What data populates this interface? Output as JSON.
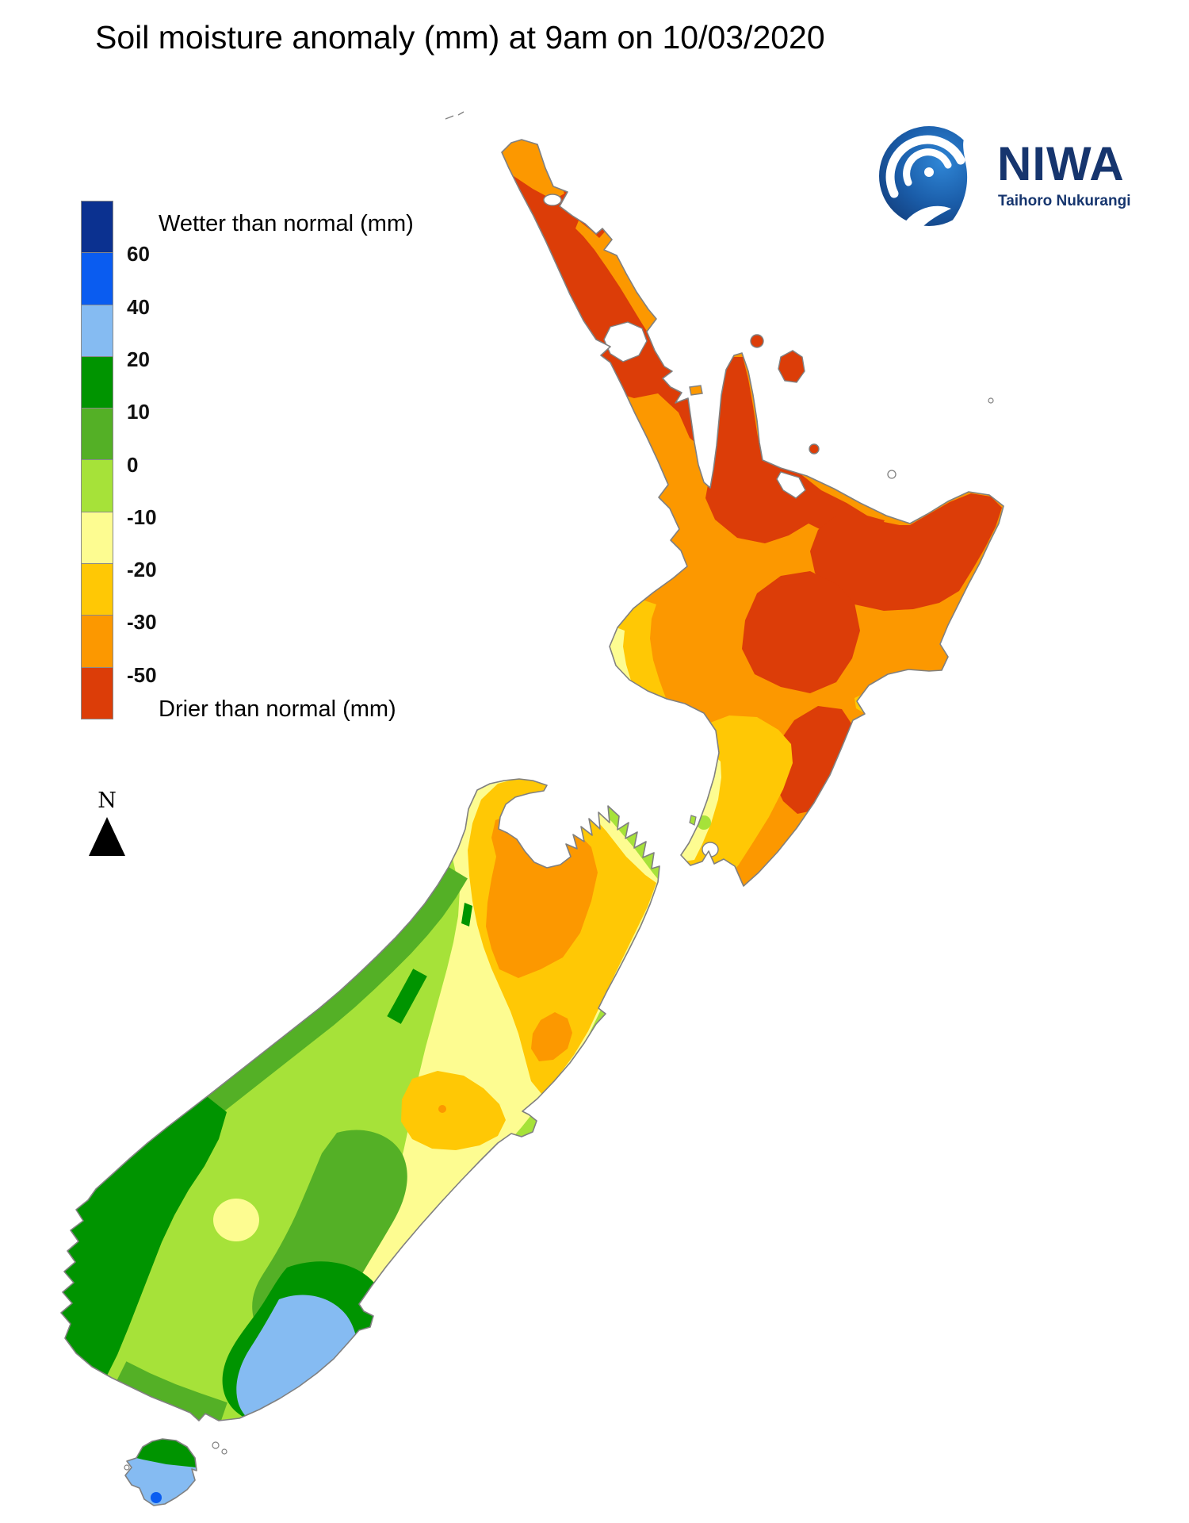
{
  "title": "Soil moisture anomaly (mm) at 9am on 10/03/2020",
  "logo": {
    "name": "NIWA",
    "tagline": "Taihoro Nukurangi",
    "color": "#16356E"
  },
  "compass": {
    "label": "N"
  },
  "palette": {
    "navy": "#0B3190",
    "blue": "#0A5CF0",
    "light_blue": "#85BBF2",
    "dark_green": "#009400",
    "mid_green": "#54B026",
    "light_green": "#A6E239",
    "pale_yellow": "#FDFC91",
    "gold": "#FFC805",
    "orange": "#FC9800",
    "red": "#DC3D08"
  },
  "legend": {
    "wetter_label": "Wetter than normal (mm)",
    "drier_label": "Drier than normal (mm)",
    "ticks": [
      "60",
      "40",
      "20",
      "10",
      "0",
      "-10",
      "-20",
      "-30",
      "-50"
    ],
    "block_colors": [
      "navy",
      "blue",
      "light_blue",
      "dark_green",
      "mid_green",
      "light_green",
      "pale_yellow",
      "gold",
      "orange",
      "red"
    ]
  },
  "map": {
    "sea_color": "#FFFFFF",
    "coastline_color": "#808080"
  }
}
